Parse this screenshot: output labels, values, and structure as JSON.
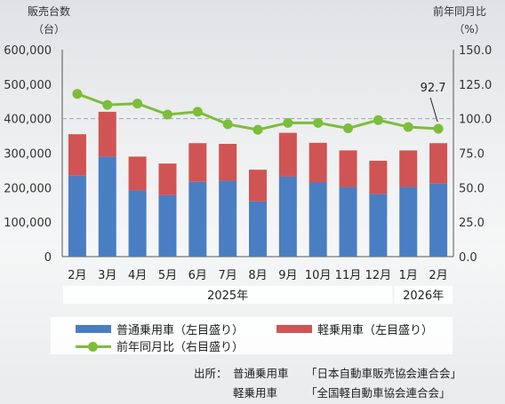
{
  "chart_data": {
    "type": "bar+line",
    "categories": [
      "2月",
      "3月",
      "4月",
      "5月",
      "6月",
      "7月",
      "8月",
      "9月",
      "10月",
      "11月",
      "12月",
      "1月",
      "2月"
    ],
    "year_groups": [
      {
        "label": "2025年",
        "start": 0,
        "end": 10
      },
      {
        "label": "2026年",
        "start": 11,
        "end": 12
      }
    ],
    "left_axis": {
      "title_line1": "販売台数",
      "title_line2": "（台）",
      "ylim": [
        0,
        600000
      ],
      "ticks": [
        0,
        100000,
        200000,
        300000,
        400000,
        500000,
        600000
      ],
      "tick_labels": [
        "0",
        "100,000",
        "200,000",
        "300,000",
        "400,000",
        "500,000",
        "600,000"
      ]
    },
    "right_axis": {
      "title_line1": "前年同月比",
      "title_line2": "（%）",
      "ylim": [
        0,
        150
      ],
      "ticks": [
        0,
        25,
        50,
        75,
        100,
        125,
        150
      ],
      "tick_labels": [
        "0.0",
        "25.0",
        "50.0",
        "75.0",
        "100.0",
        "125.0",
        "150.0"
      ]
    },
    "reference_line": 100,
    "series": [
      {
        "name": "普通乗用車（左目盛り）",
        "kind": "bar",
        "color": "#4a7ec2",
        "values": [
          235000,
          290000,
          192000,
          178000,
          217000,
          220000,
          160000,
          232000,
          215000,
          202000,
          182000,
          202000,
          212000
        ]
      },
      {
        "name": "軽乗用車（左目盛り）",
        "kind": "bar",
        "color": "#d05454",
        "values": [
          120000,
          130000,
          98000,
          92000,
          112000,
          107000,
          92000,
          127000,
          115000,
          106000,
          96000,
          106000,
          117000
        ]
      },
      {
        "name": "前年同月比（右目盛り）",
        "kind": "line",
        "color": "#7cbd3a",
        "values": [
          118,
          110,
          111,
          103,
          105,
          96,
          92,
          97,
          97,
          93,
          99,
          94,
          92.7
        ]
      }
    ],
    "annotation": {
      "text": "92.7",
      "index": 12
    }
  },
  "source": {
    "prefix": "出所：",
    "lines": [
      {
        "category": "普通乗用車",
        "org": "「日本自動車販売協会連合会」"
      },
      {
        "category": "軽乗用車",
        "org": "「全国軽自動車協会連合会」"
      }
    ]
  }
}
